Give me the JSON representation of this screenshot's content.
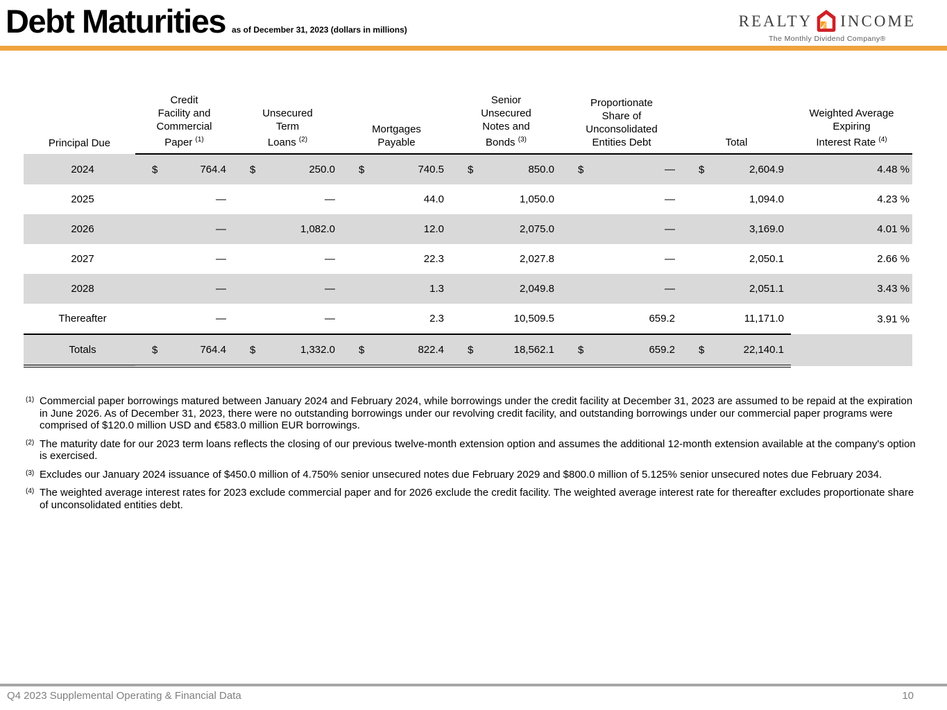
{
  "page": {
    "title": "Debt Maturities",
    "subtitle": "as of December 31, 2023 (dollars in millions)",
    "accent_color": "#EFA33D"
  },
  "logo": {
    "word_left": "REALTY",
    "word_right": "INCOME",
    "tagline": "The Monthly Dividend Company®",
    "red": "#CE2127",
    "gold": "#F6A01A"
  },
  "table": {
    "stripe_color": "#D9D9D9",
    "currency_symbol": "$",
    "columns": [
      {
        "lines": [
          "Principal Due"
        ],
        "sup": ""
      },
      {
        "lines": [
          "Credit",
          "Facility and",
          "Commercial",
          "Paper"
        ],
        "sup": "(1)"
      },
      {
        "lines": [
          "Unsecured",
          "Term",
          "Loans"
        ],
        "sup": "(2)"
      },
      {
        "lines": [
          "Mortgages",
          "Payable"
        ],
        "sup": ""
      },
      {
        "lines": [
          "Senior",
          "Unsecured",
          "Notes and",
          "Bonds"
        ],
        "sup": "(3)"
      },
      {
        "lines": [
          "Proportionate",
          "Share of",
          "Unconsolidated",
          "Entities Debt"
        ],
        "sup": ""
      },
      {
        "lines": [
          "Total"
        ],
        "sup": ""
      },
      {
        "lines": [
          "Weighted Average",
          "Expiring",
          "Interest Rate"
        ],
        "sup": "(4)"
      }
    ],
    "rows": [
      {
        "label": "2024",
        "show_dollar": true,
        "cells": [
          "764.4",
          "250.0",
          "740.5",
          "850.0",
          "—",
          "2,604.9"
        ],
        "rate": "4.48 %",
        "shaded": true
      },
      {
        "label": "2025",
        "show_dollar": false,
        "cells": [
          "—",
          "—",
          "44.0",
          "1,050.0",
          "—",
          "1,094.0"
        ],
        "rate": "4.23 %",
        "shaded": false
      },
      {
        "label": "2026",
        "show_dollar": false,
        "cells": [
          "—",
          "1,082.0",
          "12.0",
          "2,075.0",
          "—",
          "3,169.0"
        ],
        "rate": "4.01 %",
        "shaded": true
      },
      {
        "label": "2027",
        "show_dollar": false,
        "cells": [
          "—",
          "—",
          "22.3",
          "2,027.8",
          "—",
          "2,050.1"
        ],
        "rate": "2.66 %",
        "shaded": false
      },
      {
        "label": "2028",
        "show_dollar": false,
        "cells": [
          "—",
          "—",
          "1.3",
          "2,049.8",
          "—",
          "2,051.1"
        ],
        "rate": "3.43 %",
        "shaded": true
      },
      {
        "label": "Thereafter",
        "show_dollar": false,
        "cells": [
          "—",
          "—",
          "2.3",
          "10,509.5",
          "659.2",
          "11,171.0"
        ],
        "rate": "3.91 %",
        "shaded": false
      }
    ],
    "totals_row": {
      "label": "Totals",
      "show_dollar": true,
      "cells": [
        "764.4",
        "1,332.0",
        "822.4",
        "18,562.1",
        "659.2",
        "22,140.1"
      ],
      "rate": "",
      "shaded": true
    }
  },
  "footnotes": [
    {
      "sup": "(1)",
      "text": "Commercial paper borrowings matured between January 2024 and February 2024, while borrowings under the credit facility at December 31, 2023 are assumed to be repaid at the expiration in June 2026. As of December 31, 2023, there were no outstanding borrowings under our revolving credit facility, and outstanding borrowings under our commercial paper programs were comprised of $120.0 million USD and €583.0 million EUR borrowings."
    },
    {
      "sup": "(2)",
      "text": "The maturity date for our 2023 term loans reflects the closing of our previous twelve-month extension option and assumes the additional 12-month extension available at the company's option is exercised."
    },
    {
      "sup": "(3)",
      "text": "Excludes our January 2024 issuance of $450.0 million of 4.750% senior unsecured notes due February 2029 and $800.0 million of 5.125% senior unsecured notes due February 2034."
    },
    {
      "sup": "(4)",
      "text": "The weighted average interest rates for 2023 exclude commercial paper and for 2026 exclude the credit facility. The weighted average interest rate for thereafter excludes proportionate share of unconsolidated entities debt."
    }
  ],
  "footer": {
    "left": "Q4 2023 Supplemental Operating & Financial Data",
    "page_number": "10"
  }
}
